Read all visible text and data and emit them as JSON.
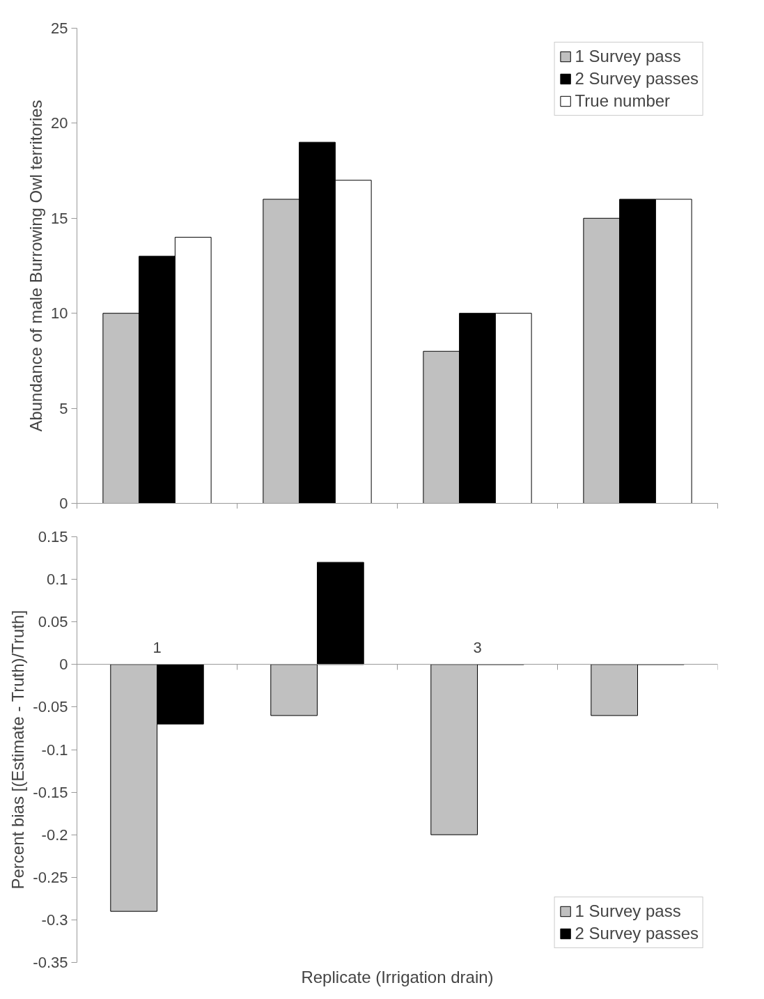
{
  "chart_data": [
    {
      "type": "bar",
      "categories": [
        null,
        null,
        null,
        null
      ],
      "ylabel": "Abundance of male Burrowing Owl territories",
      "ylim": [
        0,
        25
      ],
      "yticks": [
        0,
        5,
        10,
        15,
        20,
        25
      ],
      "tick_labels": "y",
      "legend": "top right",
      "series": [
        {
          "name": "1 Survey pass",
          "color": "#c0c0c0",
          "values": [
            10,
            16,
            8,
            15
          ]
        },
        {
          "name": "2 Survey passes",
          "color": "#000000",
          "values": [
            13,
            19,
            10,
            16
          ]
        },
        {
          "name": "True number",
          "color": "#ffffff",
          "values": [
            14,
            17,
            10,
            16
          ]
        }
      ]
    },
    {
      "type": "bar",
      "categories": [
        "1",
        null,
        "3",
        null
      ],
      "ylabel": "Percent bias [(Estimate - Truth)/Truth]",
      "xlabel": "Replicate (Irrigation drain)",
      "ylim": [
        -0.35,
        0.15
      ],
      "yticks": [
        -0.35,
        -0.3,
        -0.25,
        -0.2,
        -0.15,
        -0.1,
        -0.05,
        0,
        0.05,
        0.1,
        0.15
      ],
      "legend": "bottom right",
      "series": [
        {
          "name": "1 Survey pass",
          "color": "#c0c0c0",
          "values": [
            -0.29,
            -0.06,
            -0.2,
            -0.06
          ]
        },
        {
          "name": "2 Survey passes",
          "color": "#000000",
          "values": [
            -0.07,
            0.12,
            0,
            0
          ]
        }
      ]
    }
  ]
}
